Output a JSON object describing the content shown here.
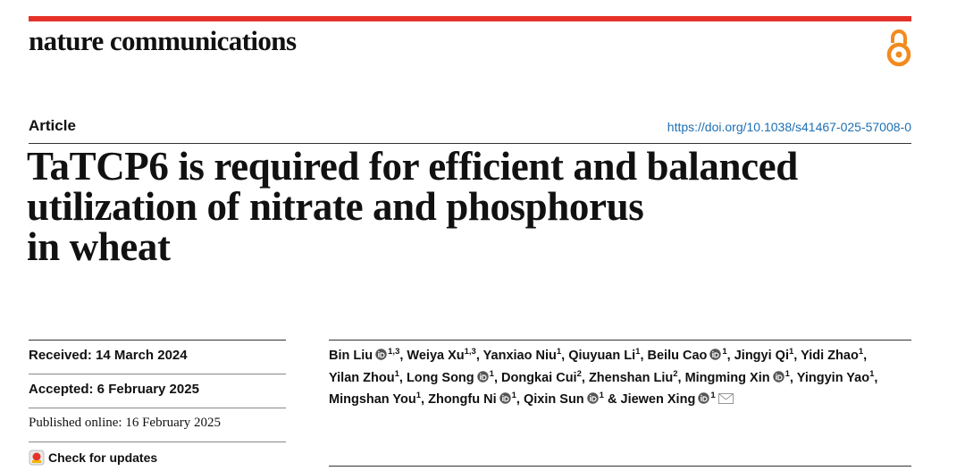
{
  "header": {
    "journal": "nature communications"
  },
  "article_type": "Article",
  "doi": "https://doi.org/10.1038/s41467-025-57008-0",
  "title": {
    "lines": [
      "TaTCP6 is required for efficient and balanced",
      "utilization of nitrate and phosphorus",
      "in wheat"
    ]
  },
  "dates": {
    "received": "Received: 14 March 2024",
    "accepted": "Accepted: 6 February 2025",
    "published": "Published online: 16 February 2025"
  },
  "check_updates": "Check for updates",
  "author_separator": ",",
  "author_conjunction": "&",
  "authors": [
    {
      "name": "Bin Liu",
      "aff": "1,3",
      "orcid": true
    },
    {
      "name": "Weiya Xu",
      "aff": "1,3",
      "orcid": false
    },
    {
      "name": "Yanxiao Niu",
      "aff": "1",
      "orcid": false
    },
    {
      "name": "Qiuyuan Li",
      "aff": "1",
      "orcid": false
    },
    {
      "name": "Beilu Cao",
      "aff": "1",
      "orcid": true
    },
    {
      "name": "Jingyi Qi",
      "aff": "1",
      "orcid": false
    },
    {
      "name": "Yidi Zhao",
      "aff": "1",
      "orcid": false
    },
    {
      "name": "Yilan Zhou",
      "aff": "1",
      "orcid": false
    },
    {
      "name": "Long Song",
      "aff": "1",
      "orcid": true
    },
    {
      "name": "Dongkai Cui",
      "aff": "2",
      "orcid": false
    },
    {
      "name": "Zhenshan Liu",
      "aff": "2",
      "orcid": false
    },
    {
      "name": "Mingming Xin",
      "aff": "1",
      "orcid": true
    },
    {
      "name": "Yingyin Yao",
      "aff": "1",
      "orcid": false
    },
    {
      "name": "Mingshan You",
      "aff": "1",
      "orcid": false
    },
    {
      "name": "Zhongfu Ni",
      "aff": "1",
      "orcid": true
    },
    {
      "name": "Qixin Sun",
      "aff": "1",
      "orcid": true
    },
    {
      "name": "Jiewen Xing",
      "aff": "1",
      "orcid": true,
      "corresponding": true
    }
  ]
}
